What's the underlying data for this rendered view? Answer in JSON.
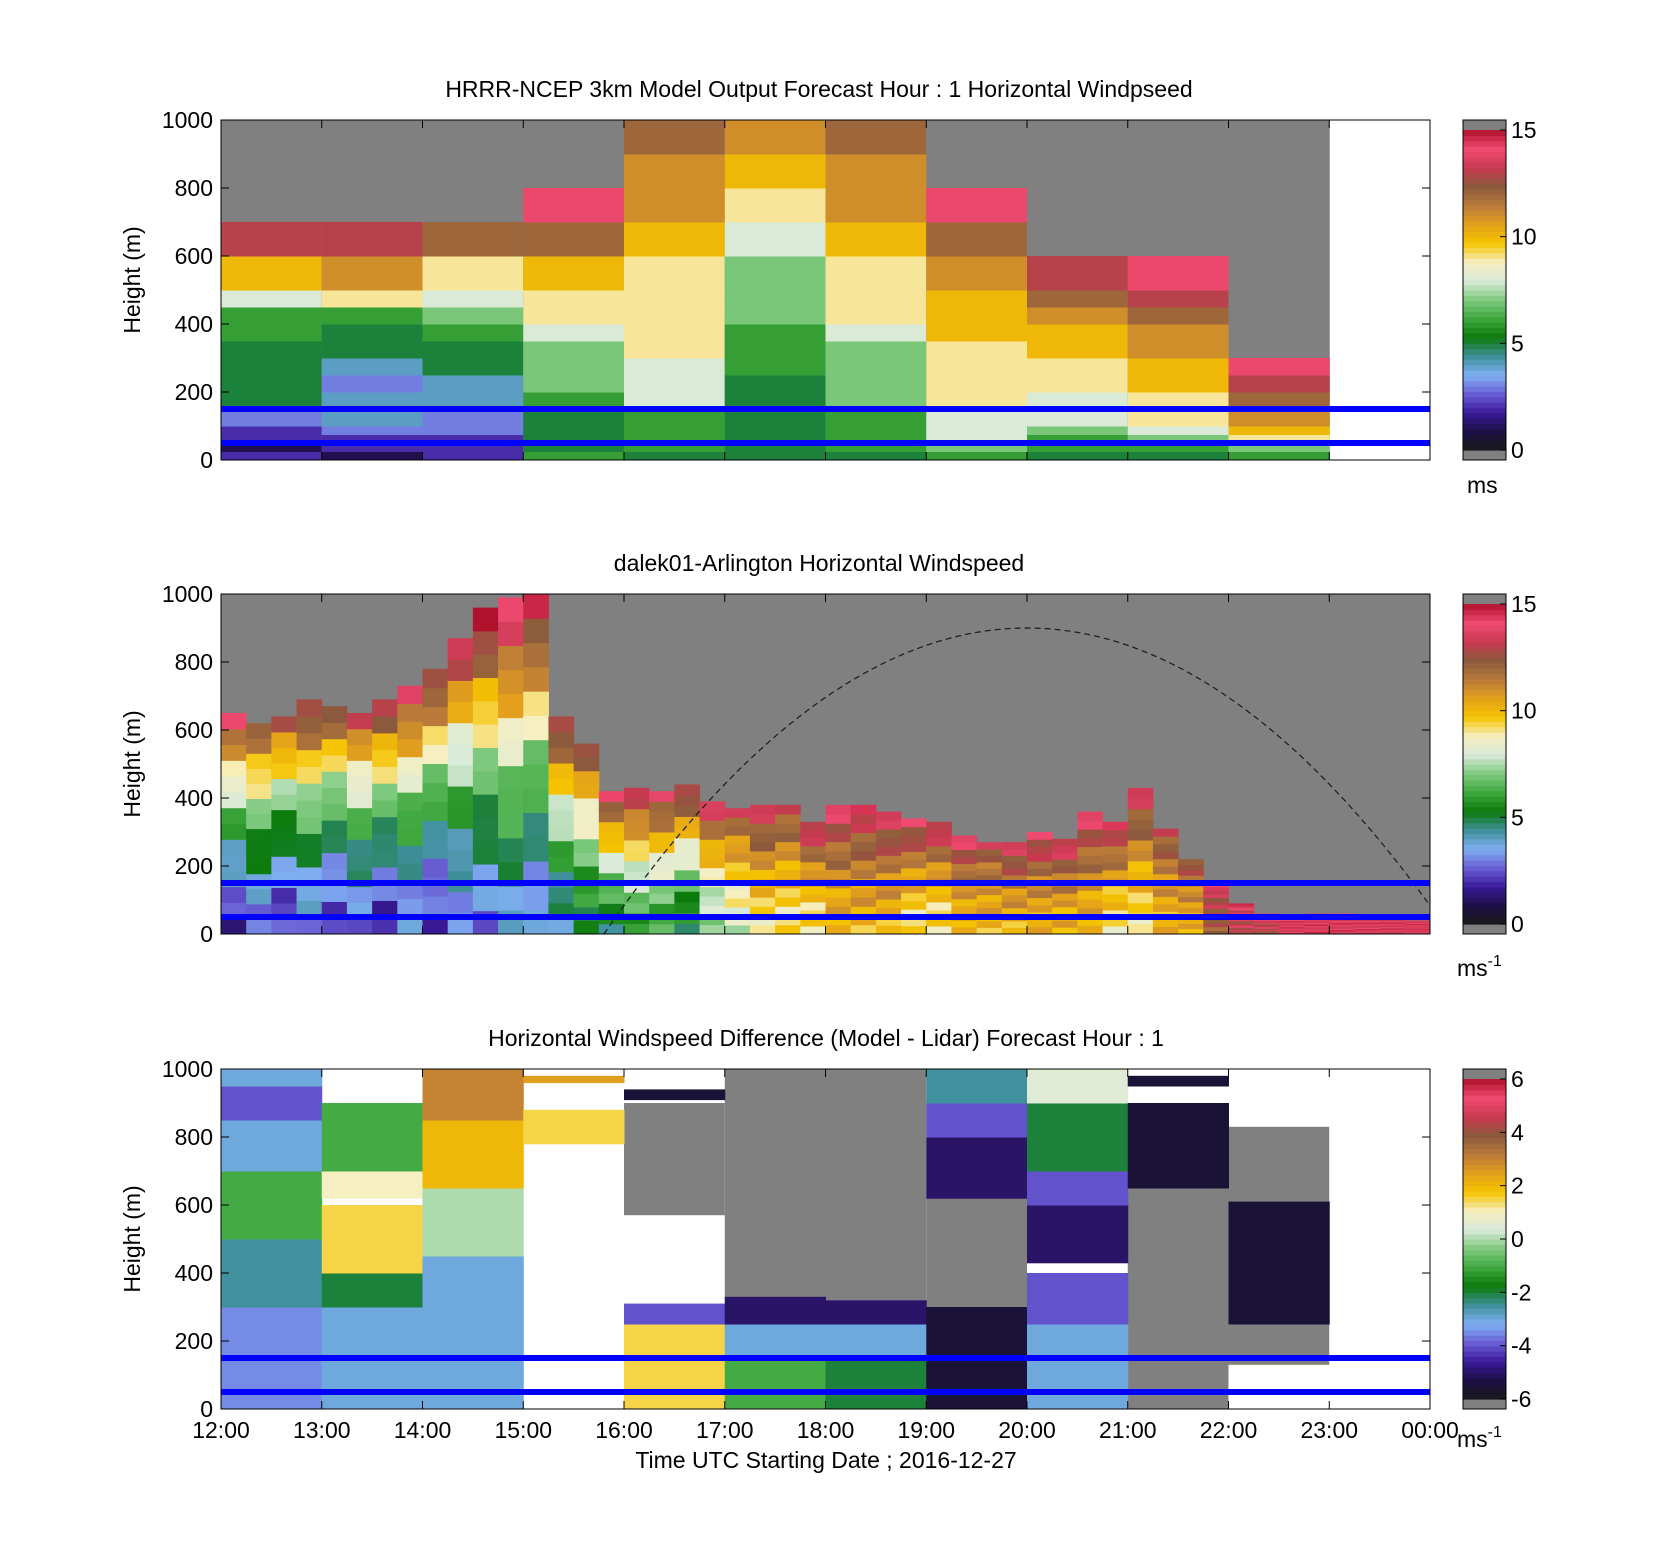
{
  "figure": {
    "xlabel": "Time UTC  Starting Date ; 2016-12-27",
    "time_ticks": [
      "12:00",
      "13:00",
      "14:00",
      "15:00",
      "16:00",
      "17:00",
      "18:00",
      "19:00",
      "20:00",
      "21:00",
      "22:00",
      "23:00",
      "00:00"
    ]
  },
  "colors": {
    "speed_stops": [
      "#1a1a1a",
      "#1c0f45",
      "#3b1a9a",
      "#6a5fd6",
      "#7fb0f2",
      "#3e8f9a",
      "#0b7a0b",
      "#3fa83f",
      "#7ec97e",
      "#d9ead9",
      "#f7efc0",
      "#f5c400",
      "#e4a01c",
      "#b97a3a",
      "#8b5a3c",
      "#c93950",
      "#f04a70",
      "#b0122c",
      "#7a7a7a"
    ],
    "diff_stops": [
      "#1a1a1a",
      "#1c0f45",
      "#3b1a9a",
      "#6a5fd6",
      "#7fb0f2",
      "#3e8f9a",
      "#0b7a0b",
      "#3fa83f",
      "#7ec97e",
      "#d9ead9",
      "#f7efc0",
      "#f5c400",
      "#e4a01c",
      "#b97a3a",
      "#8b5a3c",
      "#c93950",
      "#f04a70",
      "#b0122c",
      "#7a7a7a"
    ],
    "missing": "#808080",
    "hline": "#0000ff"
  },
  "chart_data": [
    {
      "type": "heatmap",
      "title": "HRRR-NCEP 3km Model Output   Forecast Hour : 1 Horizontal Windpseed",
      "xlabel": "",
      "ylabel": "Height (m)",
      "ylim": [
        0,
        1000
      ],
      "y_ticks": [
        "0",
        "200",
        "400",
        "600",
        "800",
        "1000"
      ],
      "colorbar": {
        "range": [
          0,
          15
        ],
        "ticks": [
          "0",
          "5",
          "10",
          "15"
        ],
        "unit": "ms"
      },
      "horizontal_lines_m": [
        50,
        150
      ],
      "hour_columns": [
        {
          "hour": "12:00",
          "top_m": 700,
          "levels_m": [
            0,
            25,
            50,
            75,
            100,
            150,
            200,
            250,
            300,
            350,
            400,
            450,
            500,
            600
          ],
          "speed_ms": [
            2,
            1,
            2,
            2,
            3,
            5,
            5,
            5,
            5,
            6,
            6,
            8,
            10,
            13
          ]
        },
        {
          "hour": "13:00",
          "top_m": 700,
          "levels_m": [
            0,
            25,
            50,
            75,
            100,
            150,
            200,
            250,
            300,
            350,
            400,
            450,
            500,
            600
          ],
          "speed_ms": [
            1,
            2,
            2,
            3,
            4,
            4,
            3,
            4,
            5,
            5,
            6,
            9,
            11,
            13
          ]
        },
        {
          "hour": "14:00",
          "top_m": 700,
          "levels_m": [
            0,
            25,
            50,
            75,
            100,
            150,
            200,
            250,
            300,
            350,
            400,
            450,
            500,
            600
          ],
          "speed_ms": [
            2,
            2,
            2,
            3,
            3,
            4,
            4,
            5,
            5,
            6,
            7,
            8,
            9,
            12
          ]
        },
        {
          "hour": "15:00",
          "top_m": 800,
          "levels_m": [
            0,
            25,
            50,
            75,
            100,
            150,
            200,
            250,
            300,
            350,
            400,
            450,
            500,
            600,
            700
          ],
          "speed_ms": [
            6,
            5,
            5,
            5,
            5,
            6,
            7,
            7,
            7,
            8,
            9,
            9,
            10,
            12,
            14
          ]
        },
        {
          "hour": "16:00",
          "top_m": 1000,
          "levels_m": [
            0,
            25,
            50,
            75,
            100,
            150,
            200,
            250,
            300,
            350,
            400,
            450,
            500,
            600,
            700,
            800,
            900
          ],
          "speed_ms": [
            5,
            6,
            6,
            6,
            6,
            8,
            8,
            8,
            9,
            9,
            9,
            9,
            9,
            10,
            11,
            11,
            12
          ]
        },
        {
          "hour": "17:00",
          "top_m": 1000,
          "levels_m": [
            0,
            25,
            50,
            75,
            100,
            150,
            200,
            250,
            300,
            350,
            400,
            450,
            500,
            600,
            700,
            800,
            900
          ],
          "speed_ms": [
            5,
            5,
            5,
            5,
            5,
            5,
            5,
            6,
            6,
            6,
            7,
            7,
            7,
            8,
            9,
            10,
            11
          ]
        },
        {
          "hour": "18:00",
          "top_m": 1000,
          "levels_m": [
            0,
            25,
            50,
            75,
            100,
            150,
            200,
            250,
            300,
            350,
            400,
            450,
            500,
            600,
            700,
            800,
            900
          ],
          "speed_ms": [
            5,
            6,
            6,
            6,
            6,
            7,
            7,
            7,
            7,
            8,
            9,
            9,
            9,
            10,
            11,
            11,
            12
          ]
        },
        {
          "hour": "19:00",
          "top_m": 800,
          "levels_m": [
            0,
            25,
            50,
            75,
            100,
            150,
            200,
            250,
            300,
            350,
            400,
            450,
            500,
            600,
            700
          ],
          "speed_ms": [
            6,
            7,
            8,
            8,
            8,
            9,
            9,
            9,
            9,
            10,
            10,
            10,
            11,
            12,
            14
          ]
        },
        {
          "hour": "20:00",
          "top_m": 600,
          "levels_m": [
            0,
            25,
            50,
            75,
            100,
            150,
            200,
            250,
            300,
            350,
            400,
            450,
            500
          ],
          "speed_ms": [
            5,
            6,
            6,
            7,
            8,
            8,
            9,
            9,
            10,
            10,
            11,
            12,
            13
          ]
        },
        {
          "hour": "21:00",
          "top_m": 600,
          "levels_m": [
            0,
            25,
            50,
            75,
            100,
            150,
            200,
            250,
            300,
            350,
            400,
            450,
            500
          ],
          "speed_ms": [
            5,
            6,
            7,
            8,
            9,
            9,
            10,
            10,
            11,
            11,
            12,
            13,
            14
          ]
        },
        {
          "hour": "22:00",
          "top_m": 300,
          "levels_m": [
            0,
            25,
            50,
            75,
            100,
            150,
            200,
            250
          ],
          "speed_ms": [
            6,
            7,
            9,
            10,
            11,
            12,
            13,
            14
          ]
        }
      ]
    },
    {
      "type": "heatmap",
      "title": "dalek01-Arlington  Horizontal Windspeed",
      "xlabel": "",
      "ylabel": "Height (m)",
      "ylim": [
        0,
        1000
      ],
      "y_ticks": [
        "0",
        "200",
        "400",
        "600",
        "800",
        "1000"
      ],
      "colorbar": {
        "range": [
          0,
          15
        ],
        "ticks": [
          "0",
          "5",
          "10",
          "15"
        ],
        "unit": "ms",
        "unit_exp": "-1"
      },
      "horizontal_lines_m": [
        50,
        150
      ],
      "dashed_curve": {
        "start_hour": 15.8,
        "end_hour": 24.0,
        "peak_hour": 20.0,
        "peak_m": 900
      },
      "profile_step_hours": 0.25,
      "profile_tops_m": [
        650,
        620,
        640,
        690,
        670,
        650,
        690,
        730,
        780,
        870,
        960,
        990,
        1000,
        640,
        560,
        420,
        430,
        420,
        440,
        390,
        370,
        380,
        380,
        330,
        380,
        380,
        360,
        340,
        330,
        290,
        270,
        270,
        300,
        280,
        360,
        330,
        430,
        310,
        220,
        150,
        90,
        60,
        50,
        60,
        60,
        55,
        50,
        40
      ],
      "profile_surface_ms": [
        2,
        3,
        2,
        3,
        2,
        3,
        2,
        3,
        2,
        3,
        3,
        4,
        3,
        4,
        5,
        5,
        6,
        6,
        5,
        7,
        8,
        9,
        9,
        9,
        10,
        10,
        10,
        9,
        9,
        10,
        10,
        10,
        10,
        10,
        10,
        9,
        9,
        10,
        10,
        12,
        13,
        13,
        14,
        14,
        14,
        14,
        14,
        14
      ],
      "profile_top_ms": [
        14,
        13,
        13,
        14,
        13,
        13,
        14,
        14,
        14,
        14,
        15,
        15,
        15,
        14,
        13,
        14,
        14,
        14,
        14,
        14,
        13,
        14,
        13,
        14,
        14,
        14,
        14,
        14,
        14,
        14,
        13,
        14,
        14,
        14,
        14,
        14,
        14,
        13,
        13,
        14,
        14,
        14,
        14,
        14,
        14,
        14,
        14,
        14
      ]
    },
    {
      "type": "heatmap",
      "title": "Horizontal Windspeed Difference (Model - Lidar) Forecast Hour : 1",
      "xlabel": "Time UTC  Starting Date ; 2016-12-27",
      "ylabel": "Height (m)",
      "ylim": [
        0,
        1000
      ],
      "y_ticks": [
        "0",
        "200",
        "400",
        "600",
        "800",
        "1000"
      ],
      "colorbar": {
        "range": [
          -6,
          6
        ],
        "ticks": [
          "-6",
          "-4",
          "-2",
          "0",
          "2",
          "4",
          "6"
        ],
        "unit": "ms",
        "unit_exp": "-1"
      },
      "horizontal_lines_m": [
        50,
        150
      ],
      "hour_columns": [
        {
          "hour": "12:00",
          "segments": [
            {
              "from_m": 0,
              "to_m": 300,
              "diff_ms": -3.5
            },
            {
              "from_m": 300,
              "to_m": 500,
              "diff_ms": -2.5
            },
            {
              "from_m": 500,
              "to_m": 700,
              "diff_ms": -1
            },
            {
              "from_m": 700,
              "to_m": 850,
              "diff_ms": -3
            },
            {
              "from_m": 850,
              "to_m": 950,
              "diff_ms": -4
            },
            {
              "from_m": 950,
              "to_m": 1000,
              "diff_ms": -3
            }
          ]
        },
        {
          "hour": "13:00",
          "segments": [
            {
              "from_m": 0,
              "to_m": 300,
              "diff_ms": -3
            },
            {
              "from_m": 300,
              "to_m": 400,
              "diff_ms": -2
            },
            {
              "from_m": 400,
              "to_m": 600,
              "diff_ms": 1.5
            },
            {
              "from_m": 620,
              "to_m": 700,
              "diff_ms": 1
            },
            {
              "from_m": 700,
              "to_m": 900,
              "diff_ms": -1
            }
          ]
        },
        {
          "hour": "14:00",
          "segments": [
            {
              "from_m": 0,
              "to_m": 450,
              "diff_ms": -3
            },
            {
              "from_m": 450,
              "to_m": 650,
              "diff_ms": 0
            },
            {
              "from_m": 650,
              "to_m": 850,
              "diff_ms": 2
            },
            {
              "from_m": 850,
              "to_m": 1000,
              "diff_ms": 3
            }
          ]
        },
        {
          "hour": "15:00",
          "segments": [
            {
              "from_m": 780,
              "to_m": 860,
              "diff_ms": 1.5
            },
            {
              "from_m": 860,
              "to_m": 880,
              "diff_ms": 1.5
            },
            {
              "from_m": 960,
              "to_m": 980,
              "diff_ms": 2.5
            }
          ]
        },
        {
          "hour": "16:00",
          "segments": [
            {
              "from_m": 0,
              "to_m": 250,
              "diff_ms": 1.5
            },
            {
              "from_m": 250,
              "to_m": 310,
              "diff_ms": -4
            },
            {
              "from_m": 910,
              "to_m": 940,
              "diff_ms": -5.5
            }
          ]
        },
        {
          "hour": "17:00",
          "segments": [
            {
              "from_m": 0,
              "to_m": 150,
              "diff_ms": -1
            },
            {
              "from_m": 150,
              "to_m": 250,
              "diff_ms": -3
            },
            {
              "from_m": 250,
              "to_m": 330,
              "diff_ms": -5
            }
          ]
        },
        {
          "hour": "18:00",
          "segments": [
            {
              "from_m": 0,
              "to_m": 150,
              "diff_ms": -2
            },
            {
              "from_m": 150,
              "to_m": 250,
              "diff_ms": -3
            },
            {
              "from_m": 250,
              "to_m": 320,
              "diff_ms": -5
            }
          ]
        },
        {
          "hour": "19:00",
          "segments": [
            {
              "from_m": 0,
              "to_m": 300,
              "diff_ms": -5.5
            },
            {
              "from_m": 620,
              "to_m": 800,
              "diff_ms": -5
            },
            {
              "from_m": 800,
              "to_m": 900,
              "diff_ms": -4
            },
            {
              "from_m": 900,
              "to_m": 1000,
              "diff_ms": -2.5
            }
          ]
        },
        {
          "hour": "20:00",
          "segments": [
            {
              "from_m": 0,
              "to_m": 250,
              "diff_ms": -3
            },
            {
              "from_m": 250,
              "to_m": 400,
              "diff_ms": -4
            },
            {
              "from_m": 430,
              "to_m": 600,
              "diff_ms": -5
            },
            {
              "from_m": 600,
              "to_m": 700,
              "diff_ms": -4
            },
            {
              "from_m": 700,
              "to_m": 900,
              "diff_ms": -2
            },
            {
              "from_m": 900,
              "to_m": 1000,
              "diff_ms": 0.5
            }
          ]
        },
        {
          "hour": "21:00",
          "segments": [
            {
              "from_m": 650,
              "to_m": 900,
              "diff_ms": -5.5
            },
            {
              "from_m": 950,
              "to_m": 980,
              "diff_ms": -5.5
            }
          ]
        },
        {
          "hour": "22:00",
          "segments": [
            {
              "from_m": 250,
              "to_m": 610,
              "diff_ms": -5.5
            }
          ]
        }
      ],
      "missing_regions": [
        {
          "from_hour": 16,
          "to_hour": 17,
          "from_m": 570,
          "to_m": 900
        },
        {
          "from_hour": 17,
          "to_hour": 19,
          "from_m": 320,
          "to_m": 1000
        },
        {
          "from_hour": 19,
          "to_hour": 20,
          "from_m": 300,
          "to_m": 620
        },
        {
          "from_hour": 21,
          "to_hour": 22,
          "from_m": 0,
          "to_m": 650
        },
        {
          "from_hour": 22,
          "to_hour": 23,
          "from_m": 130,
          "to_m": 830
        }
      ]
    }
  ]
}
